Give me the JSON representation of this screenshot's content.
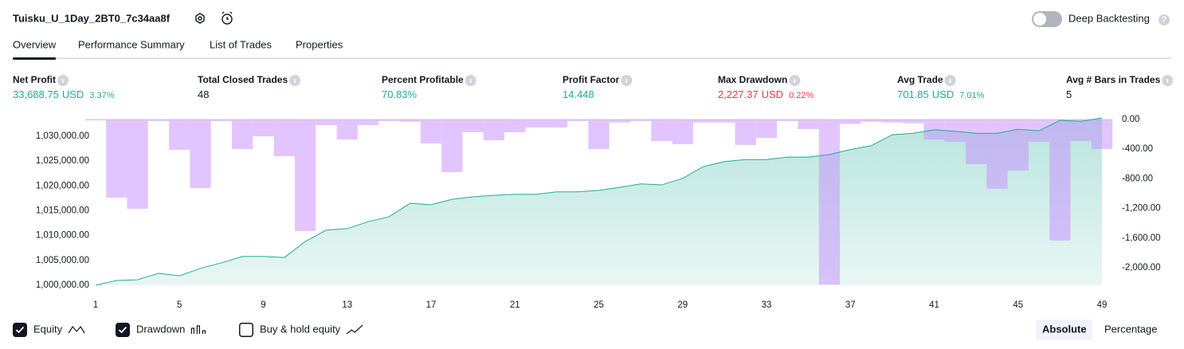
{
  "header": {
    "title": "Tuisku_U_1Day_2BT0_7c34aa8f",
    "toggle_label": "Deep Backtesting",
    "toggle_on": false
  },
  "tabs": {
    "items": [
      "Overview",
      "Performance Summary",
      "List of Trades",
      "Properties"
    ],
    "active": 0
  },
  "metrics": [
    {
      "label": "Net Profit",
      "value": "33,688.75",
      "unit": "USD",
      "percent": "3.37%",
      "color": "#22ab94"
    },
    {
      "label": "Total Closed Trades",
      "value": "48",
      "color": "#131722"
    },
    {
      "label": "Percent Profitable",
      "value": "70.83%",
      "color": "#22ab94"
    },
    {
      "label": "Profit Factor",
      "value": "14.448",
      "color": "#22ab94"
    },
    {
      "label": "Max Drawdown",
      "value": "2,227.37",
      "unit": "USD",
      "percent": "0.22%",
      "color": "#f23645"
    },
    {
      "label": "Avg Trade",
      "value": "701.85",
      "unit": "USD",
      "percent": "7.01%",
      "color": "#22ab94"
    },
    {
      "label": "Avg # Bars in Trades",
      "value": "5",
      "color": "#131722"
    }
  ],
  "chart_data": {
    "type": "line",
    "x": [
      1,
      2,
      3,
      4,
      5,
      6,
      7,
      8,
      9,
      10,
      11,
      12,
      13,
      14,
      15,
      16,
      17,
      18,
      19,
      20,
      21,
      22,
      23,
      24,
      25,
      26,
      27,
      28,
      29,
      30,
      31,
      32,
      33,
      34,
      35,
      36,
      37,
      38,
      39,
      40,
      41,
      42,
      43,
      44,
      45,
      46,
      47,
      48,
      49
    ],
    "xlim": [
      1,
      49
    ],
    "xticks": [
      1,
      5,
      9,
      13,
      17,
      21,
      25,
      29,
      33,
      37,
      41,
      45,
      49
    ],
    "series": [
      {
        "name": "Equity",
        "color": "#22ab94",
        "type": "area",
        "values": [
          1000000,
          1000960,
          1001100,
          1002400,
          1001900,
          1003400,
          1004500,
          1005800,
          1005800,
          1005600,
          1008800,
          1011100,
          1011400,
          1012800,
          1013800,
          1016500,
          1016200,
          1017300,
          1017800,
          1018100,
          1018300,
          1018300,
          1018800,
          1018800,
          1019100,
          1019700,
          1020400,
          1020200,
          1021500,
          1023900,
          1024900,
          1025300,
          1025300,
          1025800,
          1025800,
          1026300,
          1027300,
          1028100,
          1030300,
          1030600,
          1031300,
          1031000,
          1030600,
          1030600,
          1031400,
          1031100,
          1033200,
          1033000,
          1033688.75
        ]
      },
      {
        "name": "Drawdown",
        "color": "#c68bff",
        "type": "bar",
        "axis": "y2",
        "values": [
          -10,
          -1054,
          -1204,
          -20,
          -409,
          -925,
          -20,
          -398,
          -226,
          -495,
          -1505,
          -75,
          -269,
          -75,
          -20,
          -30,
          -323,
          -710,
          -172,
          -280,
          -172,
          -108,
          -108,
          -20,
          -398,
          -40,
          -20,
          -290,
          -333,
          -40,
          -40,
          -344,
          -247,
          -20,
          -129,
          -2227.37,
          -60,
          -30,
          -40,
          -50,
          -269,
          -301,
          -602,
          -935,
          -688,
          -301,
          -1634,
          -290,
          -398
        ]
      }
    ],
    "ylim": [
      1000000,
      1033360
    ],
    "yticks": [
      {
        "value": 1000000,
        "label": "1,000,000.00"
      },
      {
        "value": 1005000,
        "label": "1,005,000.00"
      },
      {
        "value": 1010000,
        "label": "1,010,000.00"
      },
      {
        "value": 1015000,
        "label": "1,015,000.00"
      },
      {
        "value": 1020000,
        "label": "1,020,000.00"
      },
      {
        "value": 1025000,
        "label": "1,025,000.00"
      },
      {
        "value": 1030000,
        "label": "1,030,000.00"
      }
    ],
    "y2lim": [
      -2237,
      0
    ],
    "y2ticks": [
      {
        "value": 0,
        "label": "0.00"
      },
      {
        "value": -400,
        "label": "-400.00"
      },
      {
        "value": -800,
        "label": "-800.00"
      },
      {
        "value": -1200,
        "label": "-1,200.00"
      },
      {
        "value": -1600,
        "label": "-1,600.00"
      },
      {
        "value": -2000,
        "label": "-2,000.00"
      }
    ]
  },
  "legend": [
    {
      "label": "Equity",
      "checked": true
    },
    {
      "label": "Drawdown",
      "checked": true
    },
    {
      "label": "Buy & hold equity",
      "checked": false
    }
  ],
  "modes": {
    "items": [
      "Absolute",
      "Percentage"
    ],
    "active": 0
  }
}
